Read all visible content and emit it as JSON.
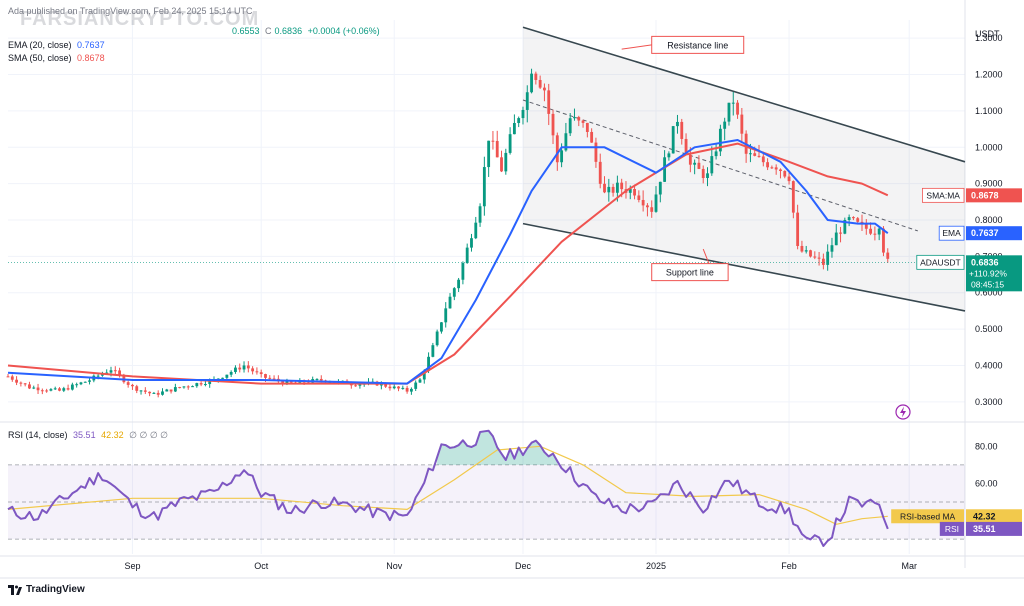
{
  "header": {
    "published": "Ada published on TradingView.com, Feb 24, 2025 15:14 UTC",
    "ohlc_close_label": "C",
    "ohlc_low": "0.6553",
    "ohlc_close": "0.6836",
    "ohlc_change": "+0.0004 (+0.06%)",
    "ema_label": "EMA (20, close)",
    "ema_value": "0.7637",
    "sma_label": "SMA (50, close)",
    "sma_value": "0.8678",
    "rsi_label": "RSI (14, close)",
    "rsi_value": "35.51",
    "rsi_ma_value": "42.32",
    "rsi_extra": "∅ ∅ ∅ ∅"
  },
  "watermark": "FARSIANCRYPTO.COM",
  "brand": "TradingView",
  "colors": {
    "up": "#089981",
    "down": "#ef5350",
    "ema": "#2962ff",
    "sma": "#ef5350",
    "rsi": "#7e57c2",
    "rsi_ma": "#f2c94c",
    "channel": "#37474f",
    "annotation": "#ef5350"
  },
  "chart_data": {
    "type": "candlestick",
    "symbol": "ADAUSDT",
    "currency": "USDT",
    "price_axis": {
      "ticks": [
        "1.3000",
        "1.2000",
        "1.1000",
        "1.0000",
        "0.9000",
        "0.8000",
        "0.7000",
        "0.6000",
        "0.5000",
        "0.4000",
        "0.3000"
      ],
      "ylim": [
        0.25,
        1.35
      ]
    },
    "time_axis": {
      "labels": [
        "Sep",
        "Oct",
        "Nov",
        "Dec",
        "2025",
        "Feb",
        "Mar"
      ],
      "label_dates": [
        "2024-09-01",
        "2024-10-01",
        "2024-11-01",
        "2024-12-01",
        "2025-01-01",
        "2025-02-01",
        "2025-03-01"
      ],
      "xlim": [
        "2024-08-03",
        "2025-03-14"
      ]
    },
    "series": [
      {
        "name": "ADAUSDT",
        "keypoints": [
          [
            "2024-08-03",
            0.37
          ],
          [
            "2024-08-08",
            0.34
          ],
          [
            "2024-08-15",
            0.33
          ],
          [
            "2024-08-22",
            0.36
          ],
          [
            "2024-08-27",
            0.39
          ],
          [
            "2024-09-01",
            0.34
          ],
          [
            "2024-09-06",
            0.32
          ],
          [
            "2024-09-12",
            0.34
          ],
          [
            "2024-09-20",
            0.36
          ],
          [
            "2024-09-27",
            0.4
          ],
          [
            "2024-10-01",
            0.37
          ],
          [
            "2024-10-07",
            0.35
          ],
          [
            "2024-10-15",
            0.36
          ],
          [
            "2024-10-22",
            0.35
          ],
          [
            "2024-10-28",
            0.35
          ],
          [
            "2024-11-04",
            0.33
          ],
          [
            "2024-11-07",
            0.36
          ],
          [
            "2024-11-10",
            0.45
          ],
          [
            "2024-11-13",
            0.56
          ],
          [
            "2024-11-16",
            0.64
          ],
          [
            "2024-11-18",
            0.72
          ],
          [
            "2024-11-21",
            0.85
          ],
          [
            "2024-11-23",
            1.03
          ],
          [
            "2024-11-26",
            0.94
          ],
          [
            "2024-11-29",
            1.06
          ],
          [
            "2024-12-02",
            1.15
          ],
          [
            "2024-12-03",
            1.22
          ],
          [
            "2024-12-06",
            1.16
          ],
          [
            "2024-12-09",
            0.96
          ],
          [
            "2024-12-12",
            1.08
          ],
          [
            "2024-12-16",
            1.05
          ],
          [
            "2024-12-20",
            0.87
          ],
          [
            "2024-12-23",
            0.89
          ],
          [
            "2024-12-27",
            0.88
          ],
          [
            "2024-12-31",
            0.83
          ],
          [
            "2025-01-03",
            0.96
          ],
          [
            "2025-01-06",
            1.08
          ],
          [
            "2025-01-09",
            0.95
          ],
          [
            "2025-01-13",
            0.92
          ],
          [
            "2025-01-17",
            1.08
          ],
          [
            "2025-01-19",
            1.13
          ],
          [
            "2025-01-22",
            0.98
          ],
          [
            "2025-01-26",
            0.96
          ],
          [
            "2025-01-29",
            0.95
          ],
          [
            "2025-02-01",
            0.92
          ],
          [
            "2025-02-03",
            0.72
          ],
          [
            "2025-02-06",
            0.7
          ],
          [
            "2025-02-09",
            0.68
          ],
          [
            "2025-02-12",
            0.76
          ],
          [
            "2025-02-15",
            0.8
          ],
          [
            "2025-02-18",
            0.78
          ],
          [
            "2025-02-21",
            0.77
          ],
          [
            "2025-02-22",
            0.79
          ],
          [
            "2025-02-23",
            0.72
          ],
          [
            "2025-02-24",
            0.6836
          ]
        ]
      },
      {
        "name": "EMA",
        "points": [
          [
            "2024-08-03",
            0.38
          ],
          [
            "2024-09-01",
            0.36
          ],
          [
            "2024-10-01",
            0.36
          ],
          [
            "2024-11-04",
            0.35
          ],
          [
            "2024-11-12",
            0.42
          ],
          [
            "2024-11-20",
            0.58
          ],
          [
            "2024-11-28",
            0.76
          ],
          [
            "2024-12-03",
            0.88
          ],
          [
            "2024-12-10",
            1.0
          ],
          [
            "2024-12-20",
            1.0
          ],
          [
            "2025-01-01",
            0.93
          ],
          [
            "2025-01-10",
            1.0
          ],
          [
            "2025-01-20",
            1.02
          ],
          [
            "2025-01-30",
            0.96
          ],
          [
            "2025-02-05",
            0.88
          ],
          [
            "2025-02-10",
            0.8
          ],
          [
            "2025-02-17",
            0.79
          ],
          [
            "2025-02-21",
            0.79
          ],
          [
            "2025-02-24",
            0.7637
          ]
        ]
      },
      {
        "name": "SMA",
        "points": [
          [
            "2024-08-03",
            0.4
          ],
          [
            "2024-09-01",
            0.37
          ],
          [
            "2024-10-01",
            0.35
          ],
          [
            "2024-11-04",
            0.35
          ],
          [
            "2024-11-15",
            0.43
          ],
          [
            "2024-11-28",
            0.59
          ],
          [
            "2024-12-10",
            0.74
          ],
          [
            "2024-12-25",
            0.88
          ],
          [
            "2025-01-08",
            0.98
          ],
          [
            "2025-01-20",
            1.01
          ],
          [
            "2025-02-01",
            0.96
          ],
          [
            "2025-02-10",
            0.92
          ],
          [
            "2025-02-18",
            0.9
          ],
          [
            "2025-02-24",
            0.8678
          ]
        ]
      }
    ],
    "rsi": {
      "axis_ticks": [
        "80.00",
        "60.00"
      ],
      "ylim": [
        22,
        92
      ],
      "bands": [
        70,
        50,
        30
      ],
      "rsi_points": [
        [
          "2024-08-03",
          45
        ],
        [
          "2024-08-10",
          42
        ],
        [
          "2024-08-18",
          55
        ],
        [
          "2024-08-25",
          65
        ],
        [
          "2024-09-01",
          48
        ],
        [
          "2024-09-06",
          42
        ],
        [
          "2024-09-12",
          50
        ],
        [
          "2024-09-20",
          55
        ],
        [
          "2024-09-27",
          68
        ],
        [
          "2024-10-01",
          55
        ],
        [
          "2024-10-08",
          45
        ],
        [
          "2024-10-15",
          50
        ],
        [
          "2024-10-22",
          48
        ],
        [
          "2024-10-28",
          44
        ],
        [
          "2024-11-04",
          42
        ],
        [
          "2024-11-08",
          60
        ],
        [
          "2024-11-12",
          80
        ],
        [
          "2024-11-18",
          82
        ],
        [
          "2024-11-23",
          86
        ],
        [
          "2024-11-27",
          74
        ],
        [
          "2024-12-03",
          81
        ],
        [
          "2024-12-08",
          76
        ],
        [
          "2024-12-12",
          66
        ],
        [
          "2024-12-18",
          52
        ],
        [
          "2024-12-24",
          46
        ],
        [
          "2024-12-31",
          48
        ],
        [
          "2025-01-06",
          60
        ],
        [
          "2025-01-12",
          47
        ],
        [
          "2025-01-18",
          62
        ],
        [
          "2025-01-25",
          50
        ],
        [
          "2025-02-01",
          45
        ],
        [
          "2025-02-05",
          28
        ],
        [
          "2025-02-10",
          30
        ],
        [
          "2025-02-15",
          50
        ],
        [
          "2025-02-20",
          48
        ],
        [
          "2025-02-22",
          50
        ],
        [
          "2025-02-24",
          35.51
        ]
      ],
      "ma_points": [
        [
          "2024-08-03",
          46
        ],
        [
          "2024-09-01",
          52
        ],
        [
          "2024-10-01",
          52
        ],
        [
          "2024-10-20",
          48
        ],
        [
          "2024-11-04",
          46
        ],
        [
          "2024-11-15",
          62
        ],
        [
          "2024-11-25",
          78
        ],
        [
          "2024-12-05",
          80
        ],
        [
          "2024-12-15",
          70
        ],
        [
          "2024-12-25",
          55
        ],
        [
          "2025-01-10",
          53
        ],
        [
          "2025-01-25",
          54
        ],
        [
          "2025-02-05",
          46
        ],
        [
          "2025-02-12",
          38
        ],
        [
          "2025-02-18",
          41
        ],
        [
          "2025-02-24",
          42.32
        ]
      ]
    },
    "channel": {
      "upper": [
        [
          "2024-12-01",
          1.33
        ],
        [
          "2025-03-14",
          0.96
        ]
      ],
      "lower": [
        [
          "2024-12-01",
          0.79
        ],
        [
          "2025-03-14",
          0.55
        ]
      ],
      "mid": [
        [
          "2024-12-01",
          1.13
        ],
        [
          "2025-03-03",
          0.77
        ]
      ]
    },
    "annotations": [
      {
        "text": "Resistance line",
        "box_date": "2024-12-31",
        "box_price": 1.305,
        "tip_date": "2024-12-24",
        "tip_price": 1.27
      },
      {
        "text": "Support line",
        "box_date": "2024-12-31",
        "box_price": 0.68,
        "tip_date": "2025-01-12",
        "tip_price": 0.72
      }
    ],
    "price_labels": [
      {
        "name": "SMA:MA",
        "text": "SMA:MA",
        "value": "0.8678",
        "price": 0.8678,
        "color": "#ef5350"
      },
      {
        "name": "EMA",
        "text": "EMA",
        "value": "0.7637",
        "price": 0.7637,
        "color": "#2962ff"
      },
      {
        "name": "ADAUSDT",
        "text": "ADAUSDT",
        "value": "0.6836",
        "change": "+110.92%",
        "countdown": "08:45:15",
        "price": 0.6836,
        "color": "#089981"
      }
    ],
    "rsi_labels": [
      {
        "name": "RSI-based MA",
        "text": "RSI-based MA",
        "value": "42.32",
        "level": 42.32,
        "color": "#f2c94c",
        "text_color": "#131722"
      },
      {
        "name": "RSI",
        "text": "RSI",
        "value": "35.51",
        "level": 35.51,
        "color": "#7e57c2",
        "text_color": "#ffffff"
      }
    ]
  }
}
